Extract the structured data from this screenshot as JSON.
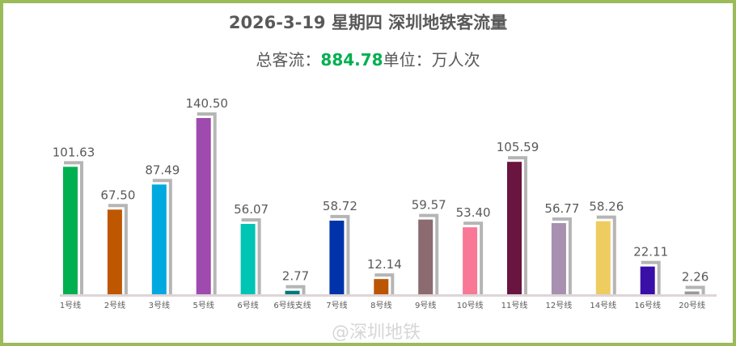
{
  "chart_data": {
    "type": "bar",
    "title": "2026-3-19 星期四  深圳地铁客流量",
    "subtitle": {
      "prefix": "总客流：",
      "total": "884.78",
      "unit": "单位：万人次"
    },
    "categories": [
      "1号线",
      "2号线",
      "3号线",
      "5号线",
      "6号线",
      "6号线支线",
      "7号线",
      "8号线",
      "9号线",
      "10号线",
      "11号线",
      "12号线",
      "14号线",
      "16号线",
      "20号线"
    ],
    "values": [
      101.63,
      67.5,
      87.49,
      140.5,
      56.07,
      2.77,
      58.72,
      12.14,
      59.57,
      53.4,
      105.59,
      56.77,
      58.26,
      22.11,
      2.26
    ],
    "labels": [
      "101.63",
      "67.50",
      "87.49",
      "140.50",
      "56.07",
      "2.77",
      "58.72",
      "12.14",
      "59.57",
      "53.40",
      "105.59",
      "56.77",
      "58.26",
      "22.11",
      "2.26"
    ],
    "colors": [
      "#00B050",
      "#BF5700",
      "#00A8E0",
      "#9E4AAE",
      "#00C4B4",
      "#007A7A",
      "#0033AA",
      "#BB5500",
      "#8B6B70",
      "#F87896",
      "#6A1440",
      "#A890B0",
      "#EECC60",
      "#3A0FA8",
      "#999999"
    ],
    "ylim": [
      0,
      140.5
    ],
    "grid": false,
    "legend": "none",
    "accent_color": "#00B050",
    "border_color": "#9BBB59"
  },
  "watermark": "@深圳地铁"
}
